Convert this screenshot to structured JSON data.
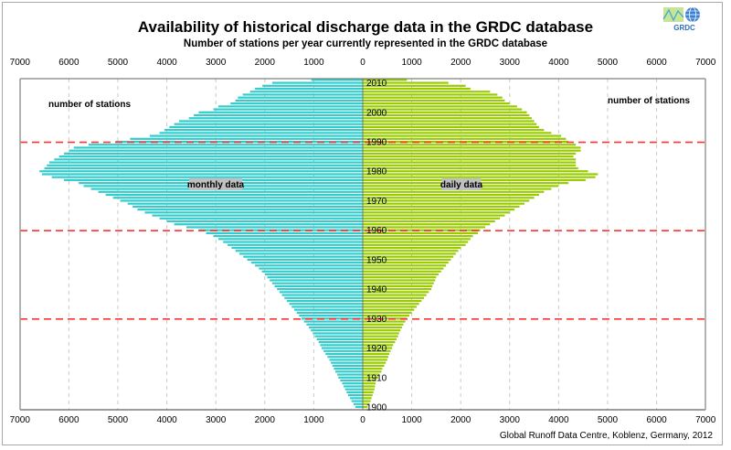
{
  "header": {
    "title": "Availability of historical discharge data in the GRDC database",
    "subtitle": "Number of stations per year currently represented in the GRDC database"
  },
  "logo": {
    "text": "GRDC",
    "icon": "grdc-logo-icon"
  },
  "footer": {
    "credit": "Global Runoff Data Centre, Koblenz, Germany, 2012"
  },
  "chart_data": {
    "type": "bar",
    "orientation": "horizontal-butterfly",
    "title": "Availability of historical discharge data in the GRDC database",
    "subtitle": "Number of stations per year currently represented in the GRDC database",
    "xlabel_left": "number of stations",
    "xlabel_right": "number of stations",
    "x_ticks": [
      7000,
      6000,
      5000,
      4000,
      3000,
      2000,
      1000,
      0,
      1000,
      2000,
      3000,
      4000,
      5000,
      6000,
      7000
    ],
    "xlim": [
      0,
      7000
    ],
    "year_ticks": [
      1900,
      1910,
      1920,
      1930,
      1940,
      1950,
      1960,
      1970,
      1980,
      1990,
      2000,
      2010
    ],
    "ylim": [
      1900,
      2011
    ],
    "grid": true,
    "reference_lines": [
      {
        "year": 1930,
        "color": "#ff3333",
        "style": "dashed"
      },
      {
        "year": 1960,
        "color": "#ff3333",
        "style": "dashed"
      },
      {
        "year": 1990,
        "color": "#ff3333",
        "style": "dashed"
      }
    ],
    "series": [
      {
        "name": "monthly data",
        "side": "left",
        "color": "#33cccc",
        "years": [
          1900,
          1901,
          1902,
          1903,
          1904,
          1905,
          1906,
          1907,
          1908,
          1909,
          1910,
          1911,
          1912,
          1913,
          1914,
          1915,
          1916,
          1917,
          1918,
          1919,
          1920,
          1921,
          1922,
          1923,
          1924,
          1925,
          1926,
          1927,
          1928,
          1929,
          1930,
          1931,
          1932,
          1933,
          1934,
          1935,
          1936,
          1937,
          1938,
          1939,
          1940,
          1941,
          1942,
          1943,
          1944,
          1945,
          1946,
          1947,
          1948,
          1949,
          1950,
          1951,
          1952,
          1953,
          1954,
          1955,
          1956,
          1957,
          1958,
          1959,
          1960,
          1961,
          1962,
          1963,
          1964,
          1965,
          1966,
          1967,
          1968,
          1969,
          1970,
          1971,
          1972,
          1973,
          1974,
          1975,
          1976,
          1977,
          1978,
          1979,
          1980,
          1981,
          1982,
          1983,
          1984,
          1985,
          1986,
          1987,
          1988,
          1989,
          1990,
          1991,
          1992,
          1993,
          1994,
          1995,
          1996,
          1997,
          1998,
          1999,
          2000,
          2001,
          2002,
          2003,
          2004,
          2005,
          2006,
          2007,
          2008,
          2009,
          2010,
          2011
        ],
        "values": [
          150,
          190,
          230,
          260,
          300,
          330,
          360,
          390,
          420,
          460,
          500,
          520,
          560,
          590,
          620,
          650,
          680,
          720,
          760,
          800,
          840,
          870,
          900,
          940,
          980,
          1020,
          1060,
          1100,
          1150,
          1200,
          1250,
          1300,
          1350,
          1400,
          1450,
          1500,
          1550,
          1600,
          1650,
          1700,
          1750,
          1800,
          1850,
          1900,
          1950,
          2000,
          2060,
          2120,
          2200,
          2280,
          2360,
          2440,
          2520,
          2600,
          2680,
          2760,
          2850,
          2950,
          3050,
          3200,
          3350,
          3600,
          3850,
          4000,
          4150,
          4300,
          4450,
          4600,
          4700,
          4800,
          4950,
          5100,
          5250,
          5400,
          5550,
          5700,
          5800,
          6100,
          6350,
          6550,
          6600,
          6500,
          6450,
          6400,
          6300,
          6200,
          6100,
          6000,
          5900,
          5600,
          5050,
          4750,
          4350,
          4150,
          4050,
          3950,
          3850,
          3750,
          3550,
          3450,
          3350,
          3050,
          2950,
          2700,
          2600,
          2550,
          2450,
          2300,
          2200,
          2050,
          1850,
          1050
        ],
        "label": "monthly data"
      },
      {
        "name": "daily data",
        "side": "right",
        "color": "#99cc00",
        "years": [
          1900,
          1901,
          1902,
          1903,
          1904,
          1905,
          1906,
          1907,
          1908,
          1909,
          1910,
          1911,
          1912,
          1913,
          1914,
          1915,
          1916,
          1917,
          1918,
          1919,
          1920,
          1921,
          1922,
          1923,
          1924,
          1925,
          1926,
          1927,
          1928,
          1929,
          1930,
          1931,
          1932,
          1933,
          1934,
          1935,
          1936,
          1937,
          1938,
          1939,
          1940,
          1941,
          1942,
          1943,
          1944,
          1945,
          1946,
          1947,
          1948,
          1949,
          1950,
          1951,
          1952,
          1953,
          1954,
          1955,
          1956,
          1957,
          1958,
          1959,
          1960,
          1961,
          1962,
          1963,
          1964,
          1965,
          1966,
          1967,
          1968,
          1969,
          1970,
          1971,
          1972,
          1973,
          1974,
          1975,
          1976,
          1977,
          1978,
          1979,
          1980,
          1981,
          1982,
          1983,
          1984,
          1985,
          1986,
          1987,
          1988,
          1989,
          1990,
          1991,
          1992,
          1993,
          1994,
          1995,
          1996,
          1997,
          1998,
          1999,
          2000,
          2001,
          2002,
          2003,
          2004,
          2005,
          2006,
          2007,
          2008,
          2009,
          2010,
          2011
        ],
        "values": [
          100,
          120,
          160,
          180,
          200,
          220,
          240,
          250,
          260,
          280,
          320,
          340,
          380,
          400,
          440,
          470,
          500,
          520,
          540,
          570,
          600,
          620,
          660,
          690,
          720,
          740,
          770,
          800,
          830,
          870,
          900,
          950,
          1000,
          1050,
          1100,
          1150,
          1200,
          1250,
          1300,
          1350,
          1400,
          1420,
          1450,
          1480,
          1500,
          1550,
          1600,
          1650,
          1700,
          1750,
          1800,
          1850,
          1900,
          1950,
          2000,
          2100,
          2150,
          2200,
          2250,
          2350,
          2400,
          2500,
          2600,
          2700,
          2800,
          2900,
          3000,
          3100,
          3200,
          3300,
          3400,
          3500,
          3600,
          3700,
          3850,
          4000,
          4200,
          4550,
          4750,
          4800,
          4600,
          4400,
          4350,
          4350,
          4350,
          4300,
          4350,
          4450,
          4450,
          4350,
          4200,
          4150,
          4050,
          3850,
          3700,
          3600,
          3550,
          3500,
          3450,
          3400,
          3350,
          3250,
          3150,
          3000,
          2900,
          2850,
          2750,
          2600,
          2200,
          2100,
          1750,
          900
        ],
        "label": "daily data"
      }
    ]
  }
}
